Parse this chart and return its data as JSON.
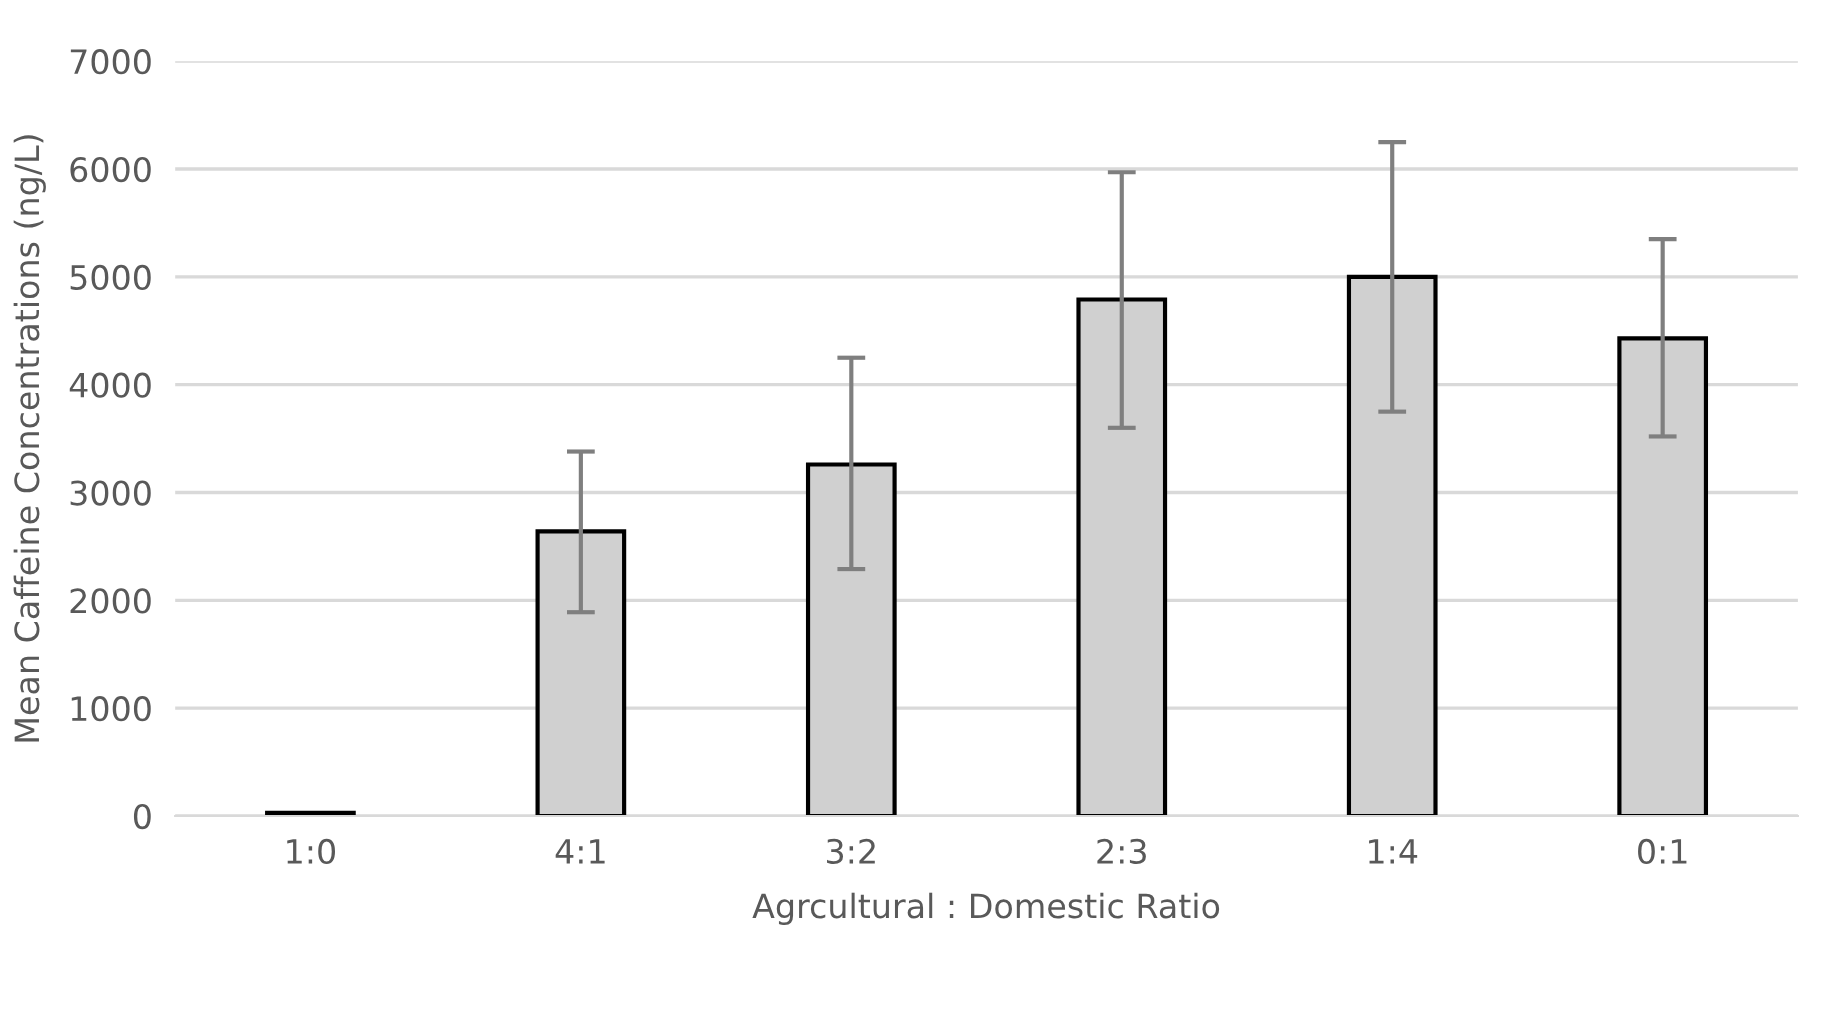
{
  "chart_data": {
    "type": "bar",
    "xlabel": "Agrcultural : Domestic Ratio",
    "ylabel": "Mean Caffeine Concentrations (ng/L)",
    "categories": [
      "1:0",
      "4:1",
      "3:2",
      "2:3",
      "1:4",
      "0:1"
    ],
    "values": [
      30,
      2640,
      3260,
      4790,
      5000,
      4430
    ],
    "errors": [
      null,
      [
        1890,
        3380
      ],
      [
        2290,
        4250
      ],
      [
        3600,
        5970
      ],
      [
        3750,
        6250
      ],
      [
        3520,
        5350
      ]
    ],
    "color": "#d0d0d0",
    "ylim": [
      0,
      7000
    ],
    "yticks": [
      0,
      1000,
      2000,
      3000,
      4000,
      5000,
      6000,
      7000
    ],
    "grid": "y"
  }
}
